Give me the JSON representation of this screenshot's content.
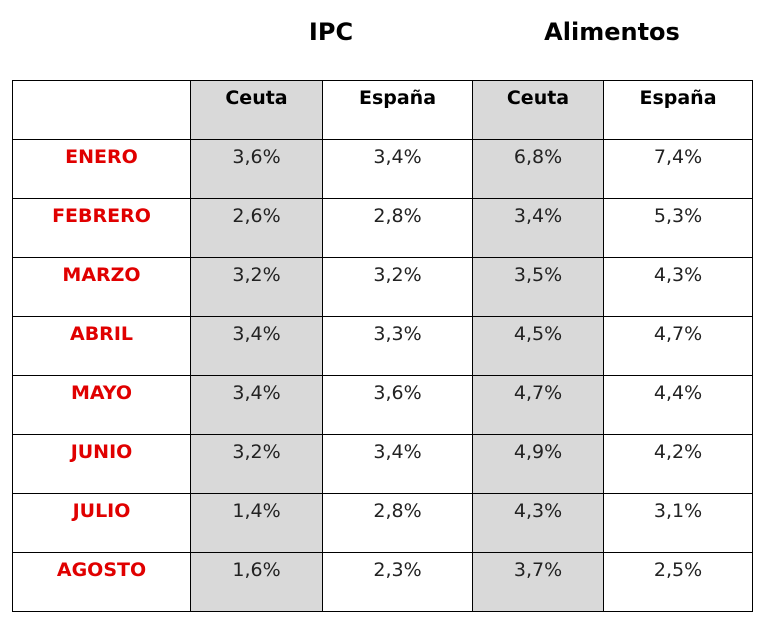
{
  "table": {
    "groups": [
      "IPC",
      "Alimentos"
    ],
    "columns": [
      "Ceuta",
      "España",
      "Ceuta",
      "España"
    ],
    "rows": [
      {
        "label": "ENERO",
        "values": [
          "3,6%",
          "3,4%",
          "6,8%",
          "7,4%"
        ]
      },
      {
        "label": "FEBRERO",
        "values": [
          "2,6%",
          "2,8%",
          "3,4%",
          "5,3%"
        ]
      },
      {
        "label": "MARZO",
        "values": [
          "3,2%",
          "3,2%",
          "3,5%",
          "4,3%"
        ]
      },
      {
        "label": "ABRIL",
        "values": [
          "3,4%",
          "3,3%",
          "4,5%",
          "4,7%"
        ]
      },
      {
        "label": "MAYO",
        "values": [
          "3,4%",
          "3,6%",
          "4,7%",
          "4,4%"
        ]
      },
      {
        "label": "JUNIO",
        "values": [
          "3,2%",
          "3,4%",
          "4,9%",
          "4,2%"
        ]
      },
      {
        "label": "JULIO",
        "values": [
          "1,4%",
          "2,8%",
          "4,3%",
          "3,1%"
        ]
      },
      {
        "label": "AGOSTO",
        "values": [
          "1,6%",
          "2,3%",
          "3,7%",
          "2,5%"
        ]
      }
    ]
  }
}
